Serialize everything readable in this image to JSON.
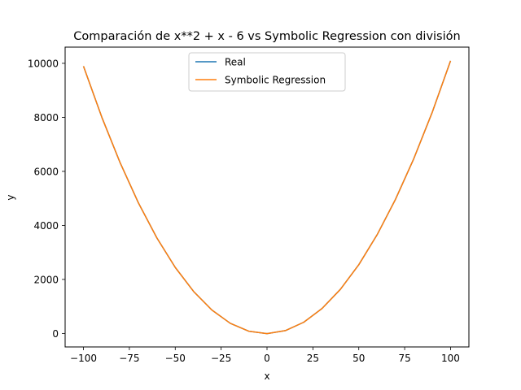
{
  "chart_data": {
    "type": "line",
    "title": "Comparación de x**2 + x - 6 vs Symbolic Regression con división",
    "xlabel": "x",
    "ylabel": "y",
    "xlim": [
      -110,
      110
    ],
    "ylim": [
      -500,
      10600
    ],
    "x_ticks": [
      -100,
      -75,
      -50,
      -25,
      0,
      25,
      50,
      75,
      100
    ],
    "y_ticks": [
      0,
      2000,
      4000,
      6000,
      8000,
      10000
    ],
    "x_tick_labels": [
      "−100",
      "−75",
      "−50",
      "−25",
      "0",
      "25",
      "50",
      "75",
      "100"
    ],
    "y_tick_labels": [
      "0",
      "2000",
      "4000",
      "6000",
      "8000",
      "10000"
    ],
    "grid": false,
    "legend_position": "top-center",
    "x": [
      -100,
      -90,
      -80,
      -70,
      -60,
      -50,
      -40,
      -30,
      -20,
      -10,
      0,
      10,
      20,
      30,
      40,
      50,
      60,
      70,
      80,
      90,
      100
    ],
    "series": [
      {
        "name": "Real",
        "color": "#1f77b4",
        "values": [
          9894,
          8004,
          6314,
          4824,
          3534,
          2444,
          1554,
          864,
          374,
          84,
          -6,
          104,
          414,
          924,
          1634,
          2544,
          3654,
          4964,
          6474,
          8184,
          10094
        ]
      },
      {
        "name": "Symbolic Regression",
        "color": "#ff7f0e",
        "values": [
          9894,
          8004,
          6314,
          4824,
          3534,
          2444,
          1554,
          864,
          374,
          84,
          -6,
          104,
          414,
          924,
          1634,
          2544,
          3654,
          4964,
          6474,
          8184,
          10094
        ]
      }
    ]
  }
}
